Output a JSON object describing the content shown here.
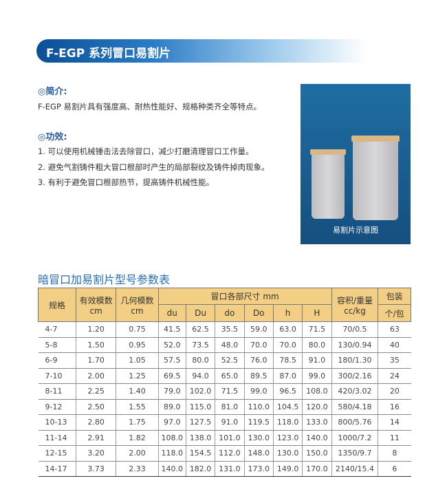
{
  "banner": {
    "title": "F-EGP 系列冒口易割片"
  },
  "intro": {
    "heading": "◎简介:",
    "text": "F-EGP 易割片具有强度高、耐热性能好、规格种类齐全等特点。"
  },
  "effects": {
    "heading": "◎功效:",
    "items": [
      "1. 可以使用机械锤击法去除冒口，减少打磨清理冒口工作量。",
      "2. 避免气割铸件粗大冒口根部时产生的局部裂纹及铸件掉肉现象。",
      "3. 有利于避免冒口根部热节，提高铸件机械性能。"
    ]
  },
  "photo": {
    "caption": "易割片示意图"
  },
  "table": {
    "title": "暗冒口加易割片型号参数表",
    "headers": {
      "spec": "规格",
      "eff": "有效模数",
      "eff_unit": "cm",
      "geo": "几何模数",
      "geo_unit": "cm",
      "dims": "冒口各部尺寸 mm",
      "dim_cols": [
        "du",
        "Du",
        "do",
        "Do",
        "h",
        "H"
      ],
      "vol": "容积/重量",
      "vol_unit": "cc/kg",
      "pack": "包装",
      "pack_unit": "个/包"
    },
    "rows": [
      [
        "4-7",
        "1.20",
        "0.75",
        "41.5",
        "62.5",
        "35.5",
        "59.0",
        "63.0",
        "71.5",
        "70/0.5",
        "63"
      ],
      [
        "5-8",
        "1.50",
        "0.95",
        "52.0",
        "73.5",
        "48.0",
        "70.0",
        "70.0",
        "80.0",
        "130/0.94",
        "40"
      ],
      [
        "6-9",
        "1.70",
        "1.05",
        "57.5",
        "80.0",
        "52.5",
        "76.0",
        "78.5",
        "91.0",
        "180/1.30",
        "35"
      ],
      [
        "7-10",
        "2.00",
        "1.25",
        "69.5",
        "94.0",
        "65.0",
        "89.5",
        "87.0",
        "99.0",
        "300/2.16",
        "24"
      ],
      [
        "8-11",
        "2.25",
        "1.40",
        "79.0",
        "102.0",
        "71.5",
        "99.0",
        "96.5",
        "108.0",
        "420/3.02",
        "20"
      ],
      [
        "9-12",
        "2.50",
        "1.55",
        "89.0",
        "115.0",
        "81.0",
        "110.0",
        "104.5",
        "120.0",
        "580/4.18",
        "16"
      ],
      [
        "10-13",
        "2.80",
        "1.75",
        "97.0",
        "127.5",
        "91.0",
        "119.5",
        "118.0",
        "133.0",
        "800/5.76",
        "14"
      ],
      [
        "11-14",
        "2.91",
        "1.82",
        "108.0",
        "138.0",
        "101.0",
        "130.0",
        "123.0",
        "140.0",
        "1000/7.2",
        "11"
      ],
      [
        "12-15",
        "3.20",
        "2.00",
        "118.0",
        "154.5",
        "112.0",
        "148.0",
        "130.0",
        "150.0",
        "1350/9.7",
        "8"
      ],
      [
        "14-17",
        "3.73",
        "2.33",
        "140.0",
        "182.0",
        "131.0",
        "173.0",
        "149.0",
        "170.0",
        "2140/15.4",
        "6"
      ]
    ]
  }
}
